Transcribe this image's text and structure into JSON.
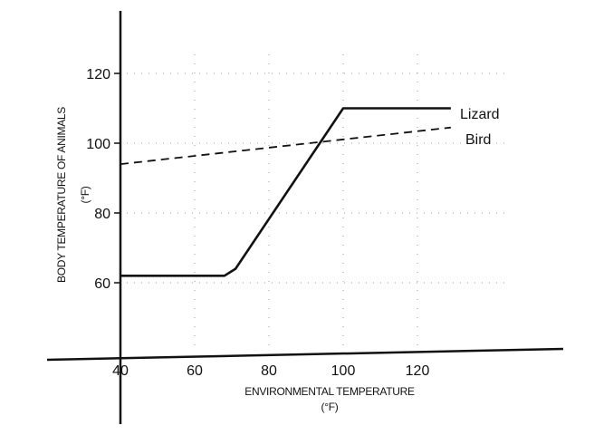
{
  "chart_data": {
    "type": "line",
    "xlabel": "ENVIRONMENTAL TEMPERATURE",
    "xunit": "(°F)",
    "ylabel": "BODY TEMPERATURE OF ANIMALS",
    "yunit": "(°F)",
    "xlim": [
      40,
      130
    ],
    "ylim": [
      40,
      130
    ],
    "x_ticks": [
      "40",
      "60",
      "80",
      "100",
      "120"
    ],
    "y_ticks": [
      "60",
      "80",
      "100",
      "120"
    ],
    "grid": true,
    "series": [
      {
        "name": "Lizard",
        "style": "solid",
        "x": [
          40,
          68,
          71,
          100,
          129
        ],
        "y": [
          62,
          62,
          64,
          110,
          110
        ]
      },
      {
        "name": "Bird",
        "style": "dashed",
        "x": [
          40,
          129
        ],
        "y": [
          94,
          104.5
        ]
      }
    ],
    "colors": {
      "line": "#111111",
      "grid": "#9a9a9a",
      "background": "#ffffff"
    }
  }
}
